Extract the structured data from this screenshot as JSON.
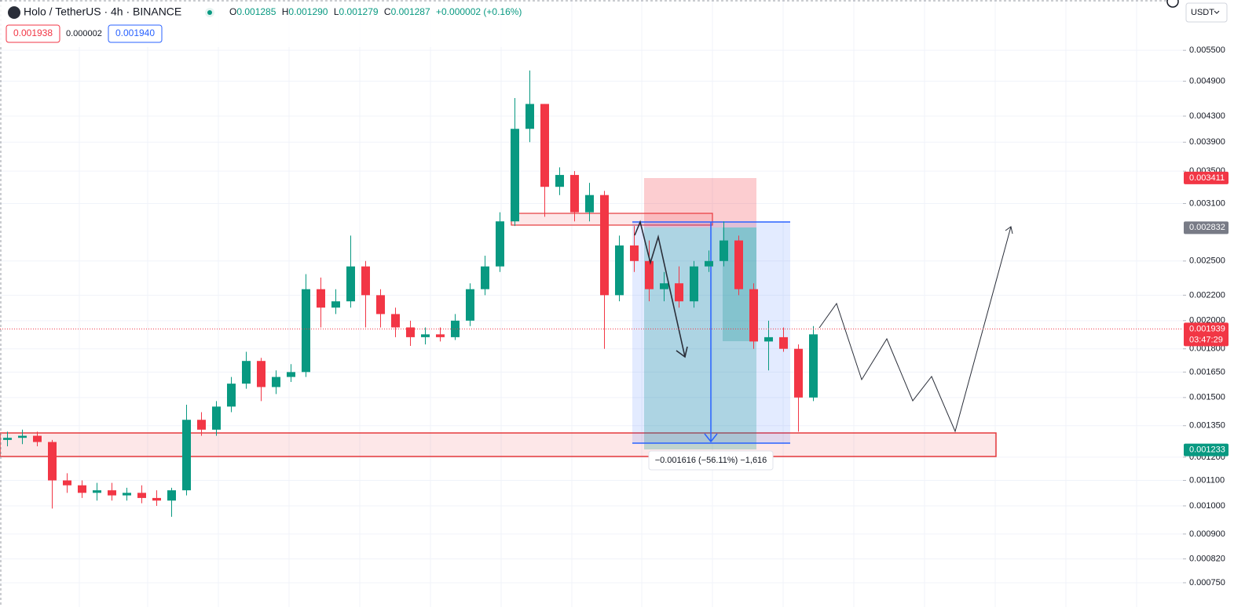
{
  "chart_data": {
    "type": "candlestick",
    "title": "Holo / TetherUS · 4h · BINANCE",
    "legend": {
      "open_label": "O",
      "open": "0.001285",
      "high_label": "H",
      "high": "0.001290",
      "low_label": "L",
      "low": "0.001279",
      "close_label": "C",
      "close": "0.001287",
      "change": "+0.000002 (+0.16%)"
    },
    "quote_boxes": {
      "bid": "0.001938",
      "spread": "0.000002",
      "ask": "0.001940"
    },
    "currency": "USDT",
    "log_scale": true,
    "grid": true,
    "up_color": "#089981",
    "down_color": "#f23645",
    "ylim": [
      0.000724,
      0.00664
    ],
    "yticks": [
      {
        "value": 0.0055,
        "label": "0.005500"
      },
      {
        "value": 0.0049,
        "label": "0.004900"
      },
      {
        "value": 0.0043,
        "label": "0.004300"
      },
      {
        "value": 0.0039,
        "label": "0.003900"
      },
      {
        "value": 0.0035,
        "label": "0.003500"
      },
      {
        "value": 0.0031,
        "label": "0.003100"
      },
      {
        "value": 0.0025,
        "label": "0.002500"
      },
      {
        "value": 0.0022,
        "label": "0.002200"
      },
      {
        "value": 0.002,
        "label": "0.002000"
      },
      {
        "value": 0.0018,
        "label": "0.001800"
      },
      {
        "value": 0.00165,
        "label": "0.001650"
      },
      {
        "value": 0.0015,
        "label": "0.001500"
      },
      {
        "value": 0.00135,
        "label": "0.001350"
      },
      {
        "value": 0.0012,
        "label": "0.001200"
      },
      {
        "value": 0.0011,
        "label": "0.001100"
      },
      {
        "value": 0.001,
        "label": "0.001000"
      },
      {
        "value": 0.0009,
        "label": "0.000900"
      },
      {
        "value": 0.00082,
        "label": "0.000820"
      },
      {
        "value": 0.00075,
        "label": "0.000750"
      }
    ],
    "open": [
      0.00128,
      0.00129,
      0.0013,
      0.00127,
      0.0011,
      0.00108,
      0.00105,
      0.00106,
      0.00104,
      0.00105,
      0.00103,
      0.00102,
      0.00106,
      0.00138,
      0.00133,
      0.00145,
      0.00158,
      0.00172,
      0.00156,
      0.00162,
      0.00165,
      0.00225,
      0.0021,
      0.00215,
      0.00245,
      0.0022,
      0.00205,
      0.00195,
      0.00188,
      0.0019,
      0.00188,
      0.002,
      0.00225,
      0.00245,
      0.0029,
      0.0041,
      0.0045,
      0.0033,
      0.00345,
      0.003,
      0.0032,
      0.0022,
      0.00265,
      0.0025,
      0.00225,
      0.0023,
      0.00215,
      0.00245,
      0.0025,
      0.0027,
      0.00225,
      0.00185,
      0.00188,
      0.0018,
      0.0015
    ],
    "high": [
      0.00132,
      0.00133,
      0.00132,
      0.00128,
      0.00113,
      0.0011,
      0.00109,
      0.00109,
      0.00107,
      0.00108,
      0.00106,
      0.00107,
      0.00146,
      0.00142,
      0.00148,
      0.00162,
      0.00178,
      0.00174,
      0.00166,
      0.0017,
      0.00238,
      0.00235,
      0.00225,
      0.00275,
      0.0025,
      0.00225,
      0.0021,
      0.002,
      0.00195,
      0.00195,
      0.00205,
      0.0023,
      0.00255,
      0.003,
      0.0046,
      0.0051,
      0.0045,
      0.00355,
      0.0035,
      0.00335,
      0.00325,
      0.00275,
      0.00285,
      0.0027,
      0.0024,
      0.00245,
      0.0025,
      0.0026,
      0.0029,
      0.00275,
      0.0023,
      0.002,
      0.00195,
      0.00183,
      0.00196
    ],
    "low": [
      0.00125,
      0.00126,
      0.00125,
      0.00099,
      0.00105,
      0.00103,
      0.00102,
      0.00102,
      0.00102,
      0.00101,
      0.001,
      0.00096,
      0.00104,
      0.0013,
      0.0013,
      0.00142,
      0.00155,
      0.00148,
      0.00152,
      0.00159,
      0.00162,
      0.00195,
      0.00205,
      0.0021,
      0.00195,
      0.00195,
      0.00188,
      0.00182,
      0.00183,
      0.00185,
      0.00186,
      0.00196,
      0.0022,
      0.0024,
      0.00285,
      0.0039,
      0.00295,
      0.0032,
      0.0029,
      0.0029,
      0.0018,
      0.00215,
      0.0024,
      0.00215,
      0.00215,
      0.0021,
      0.0021,
      0.0024,
      0.00245,
      0.0022,
      0.0018,
      0.00166,
      0.00178,
      0.00132,
      0.00148
    ],
    "close": [
      0.00129,
      0.0013,
      0.00127,
      0.0011,
      0.00108,
      0.00105,
      0.00106,
      0.00104,
      0.00105,
      0.00103,
      0.00102,
      0.00106,
      0.00138,
      0.00133,
      0.00145,
      0.00158,
      0.00172,
      0.00156,
      0.00162,
      0.00165,
      0.00225,
      0.0021,
      0.00215,
      0.00245,
      0.0022,
      0.00205,
      0.00195,
      0.00188,
      0.0019,
      0.00188,
      0.002,
      0.00225,
      0.00245,
      0.0029,
      0.0041,
      0.0045,
      0.0033,
      0.00345,
      0.003,
      0.0032,
      0.0022,
      0.00265,
      0.0025,
      0.00225,
      0.0023,
      0.00215,
      0.00245,
      0.0025,
      0.0027,
      0.00225,
      0.00185,
      0.00188,
      0.0018,
      0.0015,
      0.0019
    ],
    "price_tags": [
      {
        "value": 0.003411,
        "color": "#f23645"
      },
      {
        "value": 0.002832,
        "color": "#787b86"
      },
      {
        "value": 0.001939,
        "color": "#f23645",
        "countdown": "03:47:29"
      },
      {
        "value": 0.001233,
        "color": "#089981"
      }
    ],
    "measure_label": "−0.001616 (−56.11%) −1,616"
  }
}
